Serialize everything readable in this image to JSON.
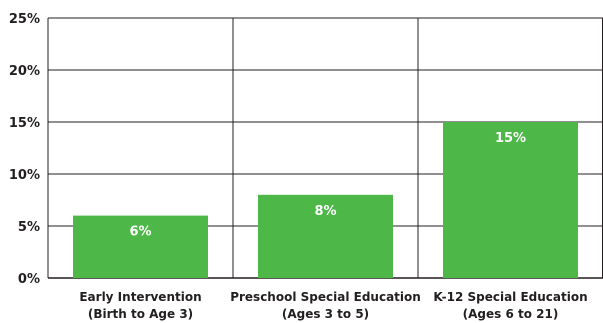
{
  "chart_data": {
    "type": "bar",
    "title": "",
    "xlabel": "",
    "ylabel": "",
    "categories": [
      [
        "Early Intervention",
        "(Birth to Age 3)"
      ],
      [
        "Preschool Special Education",
        "(Ages 3 to 5)"
      ],
      [
        "K-12 Special Education",
        "(Ages 6 to 21)"
      ]
    ],
    "values": [
      6,
      8,
      15
    ],
    "data_labels": [
      "6%",
      "8%",
      "15%"
    ],
    "ylim": [
      0,
      25
    ],
    "yticks": [
      0,
      5,
      10,
      15,
      20,
      25
    ],
    "ytick_labels": [
      "0%",
      "5%",
      "10%",
      "15%",
      "20%",
      "25%"
    ],
    "grid": true,
    "colors": {
      "bar": "#4db848",
      "grid": "#231f20",
      "text": "#231f20",
      "data_label": "#ffffff"
    }
  }
}
